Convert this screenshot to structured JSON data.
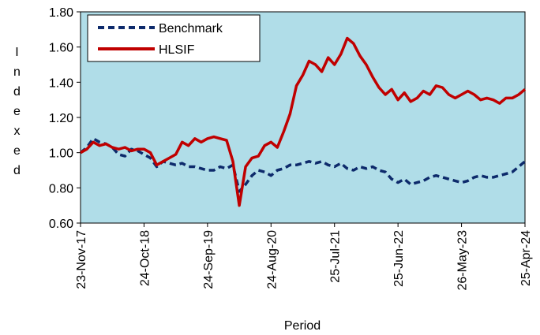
{
  "chart_data": {
    "type": "line",
    "x_label": "Period",
    "y_label": "Indexed",
    "categories": [
      "23-Nov-17",
      null,
      null,
      null,
      null,
      null,
      null,
      null,
      null,
      null,
      "24-Oct-18",
      null,
      null,
      null,
      null,
      null,
      null,
      null,
      null,
      null,
      "24-Sep-19",
      null,
      null,
      null,
      null,
      null,
      null,
      null,
      null,
      null,
      "24-Aug-20",
      null,
      null,
      null,
      null,
      null,
      null,
      null,
      null,
      null,
      "25-Jul-21",
      null,
      null,
      null,
      null,
      null,
      null,
      null,
      null,
      null,
      "25-Jun-22",
      null,
      null,
      null,
      null,
      null,
      null,
      null,
      null,
      null,
      "26-May-23",
      null,
      null,
      null,
      null,
      null,
      null,
      null,
      null,
      null,
      "25-Apr-24"
    ],
    "series": [
      {
        "name": "Benchmark",
        "color": "#0d2a6b",
        "dashed": true,
        "values": [
          1.0,
          1.03,
          1.08,
          1.06,
          1.05,
          1.03,
          0.99,
          0.98,
          1.02,
          1.01,
          0.99,
          0.97,
          0.92,
          0.95,
          0.94,
          0.93,
          0.94,
          0.92,
          0.92,
          0.91,
          0.9,
          0.9,
          0.92,
          0.91,
          0.93,
          0.78,
          0.82,
          0.87,
          0.9,
          0.89,
          0.87,
          0.9,
          0.91,
          0.93,
          0.93,
          0.94,
          0.95,
          0.94,
          0.95,
          0.93,
          0.92,
          0.94,
          0.91,
          0.9,
          0.92,
          0.91,
          0.92,
          0.9,
          0.89,
          0.85,
          0.83,
          0.85,
          0.82,
          0.83,
          0.84,
          0.86,
          0.87,
          0.86,
          0.85,
          0.84,
          0.83,
          0.84,
          0.86,
          0.87,
          0.86,
          0.86,
          0.87,
          0.88,
          0.89,
          0.92,
          0.95
        ]
      },
      {
        "name": "HLSIF",
        "color": "#c00000",
        "dashed": false,
        "values": [
          1.0,
          1.02,
          1.06,
          1.04,
          1.05,
          1.03,
          1.02,
          1.03,
          1.01,
          1.02,
          1.02,
          1.0,
          0.93,
          0.95,
          0.97,
          0.99,
          1.06,
          1.04,
          1.08,
          1.06,
          1.08,
          1.09,
          1.08,
          1.07,
          0.95,
          0.7,
          0.92,
          0.97,
          0.98,
          1.04,
          1.06,
          1.03,
          1.12,
          1.22,
          1.38,
          1.44,
          1.52,
          1.5,
          1.46,
          1.54,
          1.5,
          1.56,
          1.65,
          1.62,
          1.55,
          1.5,
          1.43,
          1.37,
          1.33,
          1.36,
          1.3,
          1.34,
          1.29,
          1.31,
          1.35,
          1.33,
          1.38,
          1.37,
          1.33,
          1.31,
          1.33,
          1.35,
          1.33,
          1.3,
          1.31,
          1.3,
          1.28,
          1.31,
          1.31,
          1.33,
          1.36
        ]
      }
    ],
    "ylim": [
      0.6,
      1.8
    ],
    "yticks": [
      {
        "value": 0.6,
        "label": "0.60"
      },
      {
        "value": 0.8,
        "label": "0.80"
      },
      {
        "value": 1.0,
        "label": "1.00"
      },
      {
        "value": 1.2,
        "label": "1.20"
      },
      {
        "value": 1.4,
        "label": "1.40"
      },
      {
        "value": 1.6,
        "label": "1.60"
      },
      {
        "value": 1.8,
        "label": "1.80"
      }
    ],
    "background": "#b0dde8",
    "legend": "upper-left"
  }
}
